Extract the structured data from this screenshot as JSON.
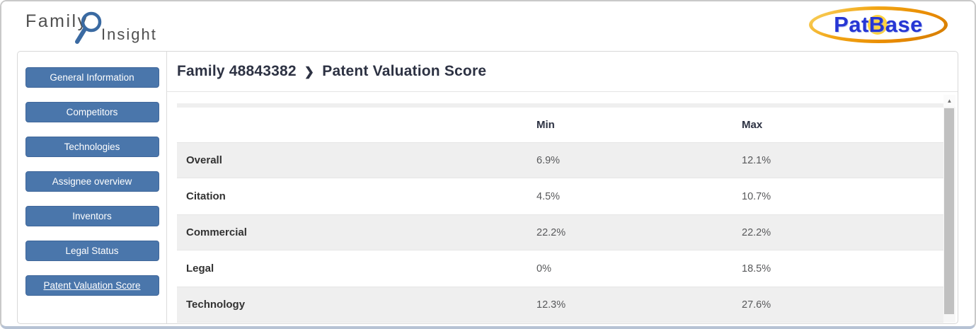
{
  "header": {
    "logo": {
      "family": "Family",
      "insight": "Insight"
    },
    "brand": "PatBase"
  },
  "sidebar": {
    "items": [
      {
        "label": "General Information",
        "active": false
      },
      {
        "label": "Competitors",
        "active": false
      },
      {
        "label": "Technologies",
        "active": false
      },
      {
        "label": "Assignee overview",
        "active": false
      },
      {
        "label": "Inventors",
        "active": false
      },
      {
        "label": "Legal Status",
        "active": false
      },
      {
        "label": "Patent Valuation Score",
        "active": true
      }
    ]
  },
  "breadcrumb": {
    "family": "Family 48843382",
    "separator": "❯",
    "page": "Patent Valuation Score"
  },
  "table": {
    "columns": [
      "Min",
      "Max"
    ],
    "rows": [
      {
        "label": "Overall",
        "min": "6.9%",
        "max": "12.1%"
      },
      {
        "label": "Citation",
        "min": "4.5%",
        "max": "10.7%"
      },
      {
        "label": "Commercial",
        "min": "22.2%",
        "max": "22.2%"
      },
      {
        "label": "Legal",
        "min": "0%",
        "max": "18.5%"
      },
      {
        "label": "Technology",
        "min": "12.3%",
        "max": "27.6%"
      }
    ]
  },
  "scrollbar": {
    "up_arrow": "▲"
  },
  "colors": {
    "accent_blue": "#4a76ab",
    "brand_blue": "#2636d4",
    "brand_orange": "#ef9400",
    "stripe_gray": "#efefef",
    "heading_text": "#2d3243"
  }
}
